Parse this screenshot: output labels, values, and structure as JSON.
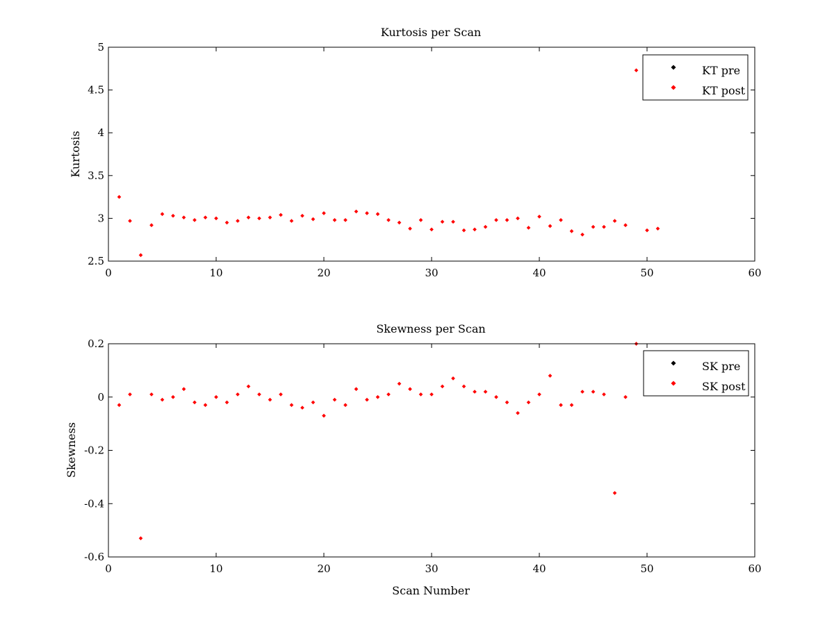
{
  "chart_data": [
    {
      "type": "scatter",
      "title": "Kurtosis per Scan",
      "xlabel": "",
      "ylabel": "Kurtosis",
      "xlim": [
        0,
        60
      ],
      "ylim": [
        2.5,
        5
      ],
      "xticks": [
        "0",
        "10",
        "20",
        "30",
        "40",
        "50",
        "60"
      ],
      "yticks": [
        "2.5",
        "3",
        "3.5",
        "4",
        "4.5",
        "5"
      ],
      "grid": false,
      "legend_position": "top-right",
      "series": [
        {
          "name": "KT pre",
          "color": "#000000",
          "x": [],
          "y": []
        },
        {
          "name": "KT post",
          "color": "#ff0000",
          "x": [
            1,
            2,
            3,
            4,
            5,
            6,
            7,
            8,
            9,
            10,
            11,
            12,
            13,
            14,
            15,
            16,
            17,
            18,
            19,
            20,
            21,
            22,
            23,
            24,
            25,
            26,
            27,
            28,
            29,
            30,
            31,
            32,
            33,
            34,
            35,
            36,
            37,
            38,
            39,
            40,
            41,
            42,
            43,
            44,
            45,
            46,
            47,
            48,
            49,
            50,
            51
          ],
          "y": [
            3.25,
            2.97,
            2.57,
            2.92,
            3.05,
            3.03,
            3.01,
            2.98,
            3.01,
            3.0,
            2.95,
            2.97,
            3.01,
            3.0,
            3.01,
            3.04,
            2.97,
            3.03,
            2.99,
            3.06,
            2.98,
            2.98,
            3.08,
            3.06,
            3.05,
            2.98,
            2.95,
            2.88,
            2.98,
            2.87,
            2.96,
            2.96,
            2.86,
            2.87,
            2.9,
            2.98,
            2.98,
            3.0,
            2.89,
            3.02,
            2.91,
            2.98,
            2.85,
            2.81,
            2.9,
            2.9,
            2.97,
            2.92,
            4.73,
            2.86,
            2.88
          ]
        }
      ]
    },
    {
      "type": "scatter",
      "title": "Skewness per Scan",
      "xlabel": "Scan Number",
      "ylabel": "Skewness",
      "xlim": [
        0,
        60
      ],
      "ylim": [
        -0.6,
        0.2
      ],
      "xticks": [
        "0",
        "10",
        "20",
        "30",
        "40",
        "50",
        "60"
      ],
      "yticks": [
        "-0.6",
        "-0.4",
        "-0.2",
        "0",
        "0.2"
      ],
      "grid": false,
      "legend_position": "top-right",
      "series": [
        {
          "name": "SK pre",
          "color": "#000000",
          "x": [],
          "y": []
        },
        {
          "name": "SK post",
          "color": "#ff0000",
          "x": [
            1,
            2,
            3,
            4,
            5,
            6,
            7,
            8,
            9,
            10,
            11,
            12,
            13,
            14,
            15,
            16,
            17,
            18,
            19,
            20,
            21,
            22,
            23,
            24,
            25,
            26,
            27,
            28,
            29,
            30,
            31,
            32,
            33,
            34,
            35,
            36,
            37,
            38,
            39,
            40,
            41,
            42,
            43,
            44,
            45,
            46,
            47,
            48,
            49
          ],
          "y": [
            -0.03,
            0.01,
            -0.53,
            0.01,
            -0.01,
            0.0,
            0.03,
            -0.02,
            -0.03,
            0.0,
            -0.02,
            0.01,
            0.04,
            0.01,
            -0.01,
            0.01,
            -0.03,
            -0.04,
            -0.02,
            -0.07,
            -0.01,
            -0.03,
            0.03,
            -0.01,
            0.0,
            0.01,
            0.05,
            0.03,
            0.01,
            0.01,
            0.04,
            0.07,
            0.04,
            0.02,
            0.02,
            0.0,
            -0.02,
            -0.06,
            -0.02,
            0.01,
            0.08,
            -0.03,
            -0.03,
            0.02,
            0.02,
            0.01,
            -0.36,
            0.0,
            0.2
          ]
        }
      ]
    }
  ]
}
